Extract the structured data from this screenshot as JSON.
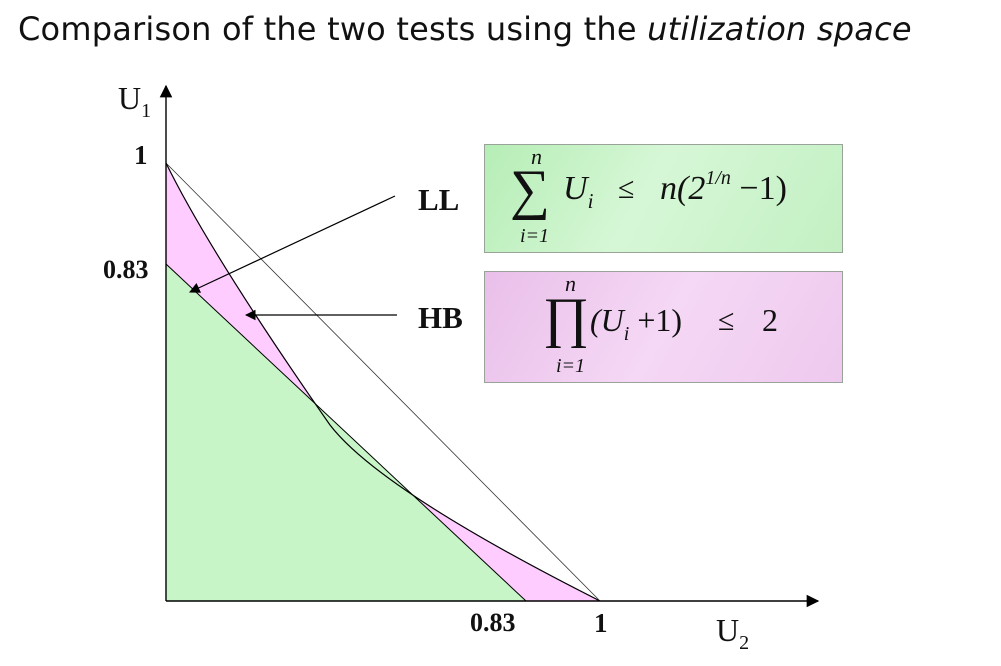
{
  "title": {
    "prefix": "Comparison of the two tests using the ",
    "emphasis": "utilization space"
  },
  "axes": {
    "y_var": "U",
    "y_sub": "1",
    "x_var": "U",
    "x_sub": "2",
    "y_ticks": [
      "1",
      "0.83"
    ],
    "x_ticks": [
      "0.83",
      "1"
    ]
  },
  "tests": {
    "ll": {
      "label": "LL",
      "sum_upper": "n",
      "sum_lower": "i=1",
      "term": "U",
      "term_sub": "i",
      "relation": "≤",
      "rhs_pre": "n(2",
      "rhs_exp": "1/n",
      "rhs_post": " −1)",
      "color": "#c3f0c3"
    },
    "hb": {
      "label": "HB",
      "prod_upper": "n",
      "prod_lower": "i=1",
      "term_pre": "(U",
      "term_sub": "i",
      "term_post": " +1)",
      "relation": "≤",
      "rhs": "2",
      "color": "#f3c8f3"
    }
  },
  "colors": {
    "ll_region": "#c8f5c8",
    "hb_region": "#ffccff",
    "axis": "#000000"
  }
}
